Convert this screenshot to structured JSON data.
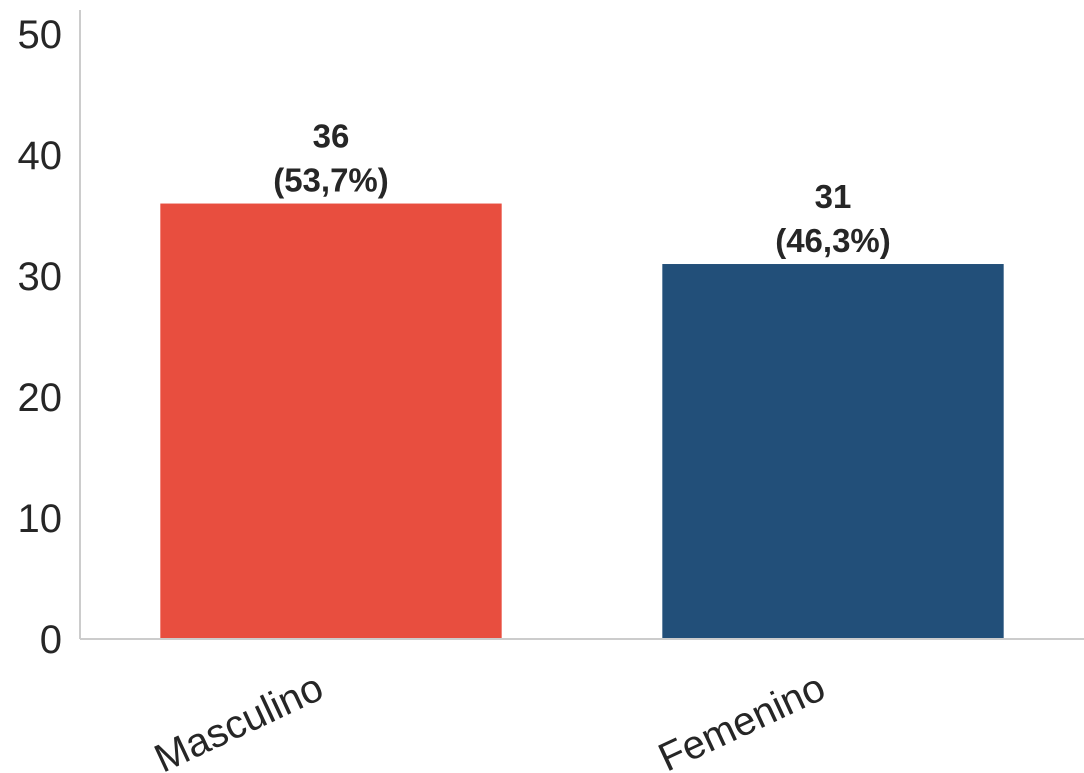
{
  "chart_data": {
    "type": "bar",
    "categories": [
      "Masculino",
      "Femenino"
    ],
    "values": [
      36,
      31
    ],
    "data_labels": [
      {
        "count": "36",
        "percent": "(53,7%)"
      },
      {
        "count": "31",
        "percent": "(46,3%)"
      }
    ],
    "colors": [
      "#e84e3f",
      "#224f79"
    ],
    "ylim": [
      0,
      52
    ],
    "yticks": [
      0,
      10,
      20,
      30,
      40,
      50
    ],
    "title": "",
    "xlabel": "",
    "ylabel": "",
    "grid": false,
    "category_label_rotation": "tilted"
  }
}
